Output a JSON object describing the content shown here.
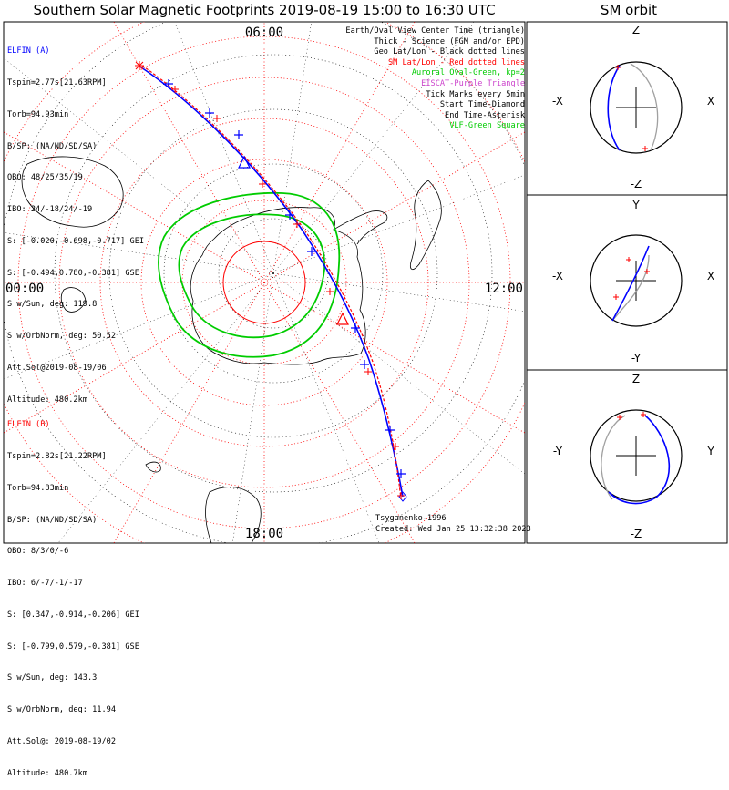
{
  "title": "Southern Solar Magnetic Footprints 2019-08-19 15:00 to 16:30 UTC",
  "orbit_title": "SM orbit",
  "elfin_a": {
    "name": "ELFIN (A)",
    "color": "#0000ff",
    "lines": [
      "Tspin=2.77s[21.63RPM]",
      "Torb=94.93min",
      "B/SP: (NA/ND/SD/SA)",
      "OBO: 48/25/35/19",
      "IBO: 24/-18/24/-19",
      "S: [-0.020,-0.698,-0.717] GEI",
      "S: [-0.494,0.780,-0.381] GSE",
      "S w/Sun, deg: 119.8",
      "S w/OrbNorm, deg: 50.52",
      "Att.Sol@2019-08-19/06",
      "Altitude: 480.2km"
    ]
  },
  "elfin_b": {
    "name": "ELFIN (B)",
    "color": "#ff0000",
    "lines": [
      "Tspin=2.82s[21.22RPM]",
      "Torb=94.83min",
      "B/SP: (NA/ND/SD/SA)",
      "OBO: 8/3/0/-6",
      "IBO: 6/-7/-1/-17",
      "S: [0.347,-0.914,-0.206] GEI",
      "S: [-0.799,0.579,-0.381] GSE",
      "S w/Sun, deg: 143.3",
      "S w/OrbNorm, deg: 11.94",
      "Att.Sol@: 2019-08-19/02",
      "Altitude: 480.7km"
    ]
  },
  "legend": [
    {
      "text": "Earth/Oval View Center Time (triangle)",
      "color": "#000000"
    },
    {
      "text": "Thick - Science (FGM and/or EPD)",
      "color": "#000000"
    },
    {
      "text": "Geo Lat/Lon - Black dotted lines",
      "color": "#000000"
    },
    {
      "text": "SM Lat/Lon - Red dotted lines",
      "color": "#ff0000"
    },
    {
      "text": "Auroral Oval-Green, kp=2",
      "color": "#00cc00"
    },
    {
      "text": "EISCAT-Purple Triangle",
      "color": "#cc44cc"
    },
    {
      "text": "Tick Marks every 5min",
      "color": "#000000"
    },
    {
      "text": "Start Time-Diamond",
      "color": "#000000"
    },
    {
      "text": "End Time-Asterisk",
      "color": "#000000"
    },
    {
      "text": "VLF-Green Square",
      "color": "#00cc00"
    }
  ],
  "credit": "Tsyganenko-1996",
  "created": "Created: Wed Jan 25 13:32:38 2023",
  "map_labels": {
    "top": "06:00",
    "left": "00:00",
    "right": "12:00",
    "bottom": "18:00"
  },
  "panels": [
    {
      "top": "Z",
      "bottom": "-Z",
      "left": "-X",
      "right": "X"
    },
    {
      "top": "Y",
      "bottom": "-Y",
      "left": "-X",
      "right": "X"
    },
    {
      "top": "Z",
      "bottom": "-Z",
      "left": "-Y",
      "right": "Y"
    }
  ],
  "colors": {
    "sm_grid": "#ff0000",
    "geo_grid": "#000000",
    "oval": "#00cc00",
    "elfin_a": "#0000ff",
    "elfin_b": "#ff0000",
    "orbit_gray": "#a0a0a0"
  },
  "chart_data": {
    "type": "scatter",
    "title": "Southern Solar Magnetic Footprints 2019-08-19 15:00 to 16:30 UTC",
    "projection": "polar, southern hemisphere, SM coordinates",
    "mlt_labels": [
      "06:00",
      "00:00",
      "12:00",
      "18:00"
    ],
    "series": [
      {
        "name": "ELFIN (A)",
        "color": "#0000ff"
      },
      {
        "name": "ELFIN (B)",
        "color": "#ff0000"
      }
    ]
  }
}
